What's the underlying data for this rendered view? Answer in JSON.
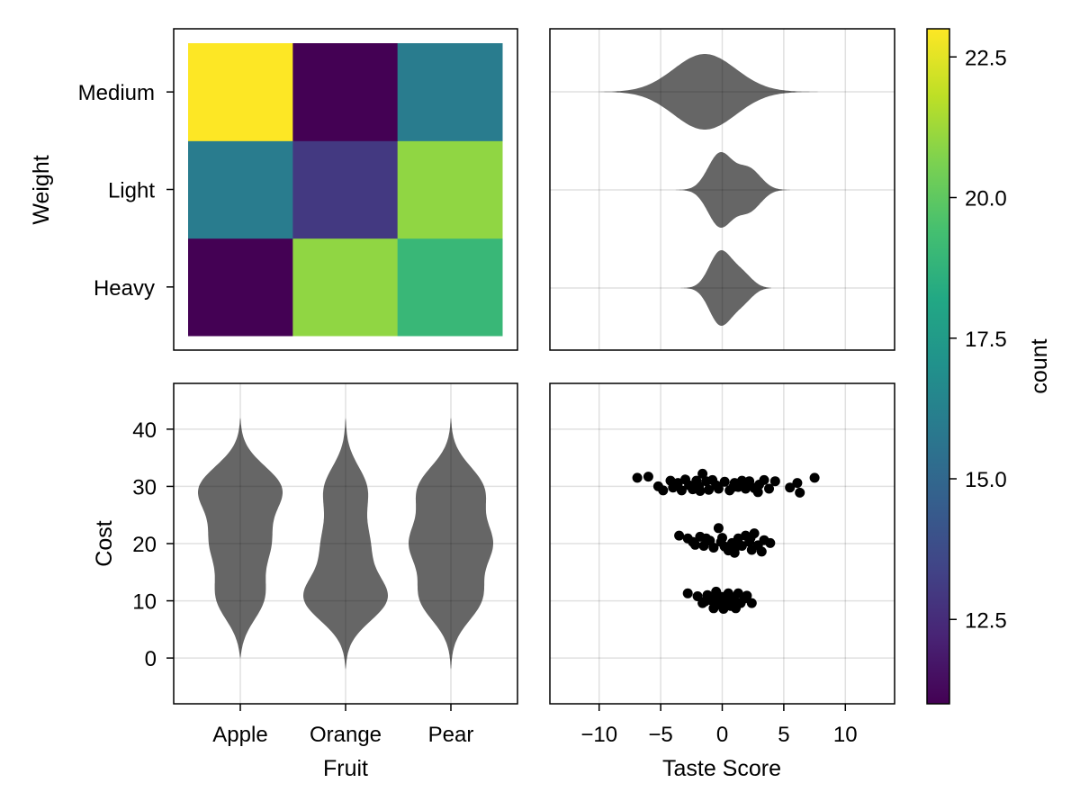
{
  "chart_data": [
    {
      "type": "heatmap",
      "panel": "top-left",
      "xlabel": "",
      "ylabel": "Weight",
      "x_categories": [
        "Apple",
        "Orange",
        "Pear"
      ],
      "y_categories": [
        "Heavy",
        "Light",
        "Medium"
      ],
      "values": [
        [
          11.0,
          21.0,
          19.0
        ],
        [
          16.0,
          13.0,
          21.0
        ],
        [
          23.0,
          11.0,
          16.0
        ]
      ],
      "colormap": "viridis",
      "colorrange": [
        11.0,
        23.0
      ]
    },
    {
      "type": "violin",
      "panel": "top-right",
      "orientation": "horizontal",
      "xlim": [
        -14,
        14
      ],
      "xticks": [
        -10,
        -5,
        0,
        5,
        10
      ],
      "categories": [
        "Heavy",
        "Light",
        "Medium"
      ],
      "distributions": [
        {
          "category": "Heavy",
          "range": [
            -4,
            4
          ],
          "modes": [
            {
              "center": -0.2,
              "weight": 1.0,
              "spread": 0.9
            },
            {
              "center": 1.6,
              "weight": 0.45,
              "spread": 0.9
            }
          ]
        },
        {
          "category": "Light",
          "range": [
            -5,
            6
          ],
          "modes": [
            {
              "center": -0.2,
              "weight": 1.0,
              "spread": 1.0
            },
            {
              "center": 2.2,
              "weight": 0.6,
              "spread": 1.0
            }
          ]
        },
        {
          "category": "Medium",
          "range": [
            -10,
            10
          ],
          "modes": [
            {
              "center": -1.5,
              "weight": 1.0,
              "spread": 2.6
            }
          ]
        }
      ],
      "grid": true
    },
    {
      "type": "violin",
      "panel": "bottom-left",
      "orientation": "vertical",
      "xlabel": "Fruit",
      "ylabel": "Cost",
      "categories": [
        "Apple",
        "Orange",
        "Pear"
      ],
      "ylim": [
        -8,
        48
      ],
      "yticks": [
        0,
        10,
        20,
        30,
        40
      ],
      "distributions": [
        {
          "category": "Apple",
          "range": [
            0,
            42
          ],
          "modes": [
            {
              "center": 10,
              "weight": 0.6
            },
            {
              "center": 20,
              "weight": 0.6
            },
            {
              "center": 30,
              "weight": 1.0
            }
          ]
        },
        {
          "category": "Orange",
          "range": [
            -2,
            42
          ],
          "modes": [
            {
              "center": 10,
              "weight": 1.0
            },
            {
              "center": 20,
              "weight": 0.45
            },
            {
              "center": 30,
              "weight": 0.5
            }
          ]
        },
        {
          "category": "Pear",
          "range": [
            -2,
            42
          ],
          "modes": [
            {
              "center": 10,
              "weight": 0.7
            },
            {
              "center": 20,
              "weight": 0.8
            },
            {
              "center": 30,
              "weight": 0.75
            }
          ]
        }
      ],
      "grid": true
    },
    {
      "type": "scatter",
      "panel": "bottom-right",
      "xlabel": "Taste Score",
      "ylabel": "",
      "xlim": [
        -14,
        14
      ],
      "ylim": [
        -8,
        48
      ],
      "xticks": [
        -10,
        -5,
        0,
        5,
        10
      ],
      "xtick_labels": [
        "−10",
        "−5",
        "0",
        "5",
        "10"
      ],
      "points": [
        [
          -6.9,
          31.5
        ],
        [
          -6.0,
          31.7
        ],
        [
          -5.2,
          30.0
        ],
        [
          -4.8,
          29.3
        ],
        [
          -4.2,
          31.0
        ],
        [
          -4.0,
          29.8
        ],
        [
          -3.6,
          30.6
        ],
        [
          -3.3,
          29.3
        ],
        [
          -3.0,
          31.2
        ],
        [
          -2.7,
          30.2
        ],
        [
          -2.4,
          29.5
        ],
        [
          -2.1,
          31.0
        ],
        [
          -1.9,
          30.0
        ],
        [
          -1.6,
          32.2
        ],
        [
          -1.3,
          30.9
        ],
        [
          -1.1,
          29.4
        ],
        [
          -0.8,
          31.1
        ],
        [
          -0.5,
          30.2
        ],
        [
          -0.3,
          29.6
        ],
        [
          0.2,
          30.8
        ],
        [
          0.6,
          29.3
        ],
        [
          1.0,
          30.6
        ],
        [
          1.3,
          29.9
        ],
        [
          1.6,
          31.0
        ],
        [
          1.9,
          29.6
        ],
        [
          2.2,
          30.9
        ],
        [
          2.6,
          29.7
        ],
        [
          3.0,
          30.3
        ],
        [
          3.4,
          31.1
        ],
        [
          3.8,
          29.6
        ],
        [
          4.3,
          30.9
        ],
        [
          5.5,
          29.8
        ],
        [
          6.1,
          30.6
        ],
        [
          6.3,
          28.9
        ],
        [
          7.5,
          31.5
        ],
        [
          -1.8,
          29.2
        ],
        [
          0.9,
          29.9
        ],
        [
          2.9,
          29.0
        ],
        [
          -3.5,
          21.4
        ],
        [
          -2.8,
          20.9
        ],
        [
          -2.4,
          20.3
        ],
        [
          -1.8,
          21.2
        ],
        [
          -1.5,
          19.6
        ],
        [
          -1.0,
          20.5
        ],
        [
          -0.7,
          19.3
        ],
        [
          -0.3,
          22.7
        ],
        [
          -0.1,
          20.3
        ],
        [
          0.2,
          19.5
        ],
        [
          0.5,
          18.8
        ],
        [
          0.8,
          20.1
        ],
        [
          1.1,
          19.4
        ],
        [
          1.3,
          20.9
        ],
        [
          1.6,
          19.6
        ],
        [
          1.9,
          21.4
        ],
        [
          2.2,
          20.3
        ],
        [
          2.4,
          18.9
        ],
        [
          2.6,
          21.8
        ],
        [
          2.9,
          19.7
        ],
        [
          3.2,
          18.6
        ],
        [
          3.4,
          20.6
        ],
        [
          3.9,
          20.1
        ],
        [
          -2.2,
          19.8
        ],
        [
          0.0,
          21.0
        ],
        [
          1.0,
          18.4
        ],
        [
          2.3,
          21.0
        ],
        [
          -1.3,
          20.9
        ],
        [
          -2.8,
          11.3
        ],
        [
          -2.0,
          10.8
        ],
        [
          -1.6,
          9.6
        ],
        [
          -1.2,
          11.0
        ],
        [
          -0.9,
          10.1
        ],
        [
          -0.7,
          8.7
        ],
        [
          -0.5,
          11.6
        ],
        [
          -0.3,
          9.4
        ],
        [
          -0.1,
          10.7
        ],
        [
          0.1,
          8.6
        ],
        [
          0.3,
          10.2
        ],
        [
          0.5,
          11.3
        ],
        [
          0.7,
          9.1
        ],
        [
          0.9,
          10.6
        ],
        [
          1.1,
          8.7
        ],
        [
          1.3,
          11.3
        ],
        [
          1.5,
          9.6
        ],
        [
          1.8,
          10.4
        ],
        [
          2.4,
          9.6
        ],
        [
          -0.6,
          10.3
        ],
        [
          0.0,
          9.9
        ],
        [
          0.4,
          11.0
        ],
        [
          1.0,
          10.0
        ],
        [
          -1.4,
          9.9
        ],
        [
          0.2,
          9.0
        ],
        [
          2.0,
          10.9
        ]
      ],
      "grid": true
    }
  ],
  "colorbar": {
    "label": "count",
    "colormap": "viridis",
    "range": [
      11.0,
      23.0
    ],
    "ticks": [
      12.5,
      15.0,
      17.5,
      20.0,
      22.5
    ],
    "tick_labels": [
      "12.5",
      "15.0",
      "17.5",
      "20.0",
      "22.5"
    ]
  },
  "colors": {
    "mark": "#000000",
    "violin_opacity": 0.6
  }
}
